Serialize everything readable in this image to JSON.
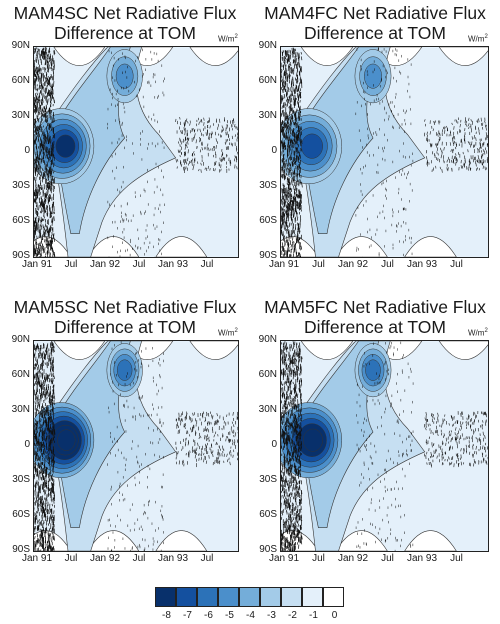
{
  "colors": {
    "levels": [
      "#08306b",
      "#14509f",
      "#2c72b8",
      "#4b8fcb",
      "#74add9",
      "#a3cbe8",
      "#c6dff2",
      "#e4f0fa",
      "#ffffff"
    ],
    "noise": "#111111",
    "contour": "#333333"
  },
  "panels": [
    {
      "title_line1": "MAM4SC Net Radiative Flux",
      "title_line2": "Difference at TOM",
      "unit": "W/m",
      "unit_sup": "2"
    },
    {
      "title_line1": "MAM4FC Net Radiative Flux",
      "title_line2": "Difference at TOM",
      "unit": "W/m",
      "unit_sup": "2"
    },
    {
      "title_line1": "MAM5SC Net Radiative Flux",
      "title_line2": "Difference at TOM",
      "unit": "W/m",
      "unit_sup": "2"
    },
    {
      "title_line1": "MAM5FC Net Radiative Flux",
      "title_line2": "Difference at TOM",
      "unit": "W/m",
      "unit_sup": "2"
    }
  ],
  "chart_data": [
    {
      "type": "heatmap",
      "title": "MAM4SC Net Radiative Flux Difference at TOM",
      "y_ticks": [
        "90N",
        "60N",
        "30N",
        "0",
        "30S",
        "60S",
        "90S"
      ],
      "x_ticks": [
        "Jan 91",
        "Jul",
        "Jan 92",
        "Jul",
        "Jan 93",
        "Jul"
      ],
      "ylim": [
        -90,
        90
      ],
      "grid": false,
      "plume": {
        "peak_lat": 5,
        "peak_value": -6,
        "peak_month": 3
      }
    },
    {
      "type": "heatmap",
      "title": "MAM4FC Net Radiative Flux Difference at TOM",
      "y_ticks": [
        "90N",
        "60N",
        "30N",
        "0",
        "30S",
        "60S",
        "90S"
      ],
      "x_ticks": [
        "Jan 91",
        "Jul",
        "Jan 92",
        "Jul",
        "Jan 93",
        "Jul"
      ],
      "ylim": [
        -90,
        90
      ],
      "grid": false,
      "plume": {
        "peak_lat": 5,
        "peak_value": -5,
        "peak_month": 3
      }
    },
    {
      "type": "heatmap",
      "title": "MAM5SC Net Radiative Flux Difference at TOM",
      "y_ticks": [
        "90N",
        "60N",
        "30N",
        "0",
        "30S",
        "60S",
        "90S"
      ],
      "x_ticks": [
        "Jan 91",
        "Jul",
        "Jan 92",
        "Jul",
        "Jan 93",
        "Jul"
      ],
      "ylim": [
        -90,
        90
      ],
      "grid": false,
      "plume": {
        "peak_lat": 5,
        "peak_value": -8,
        "peak_month": 3
      }
    },
    {
      "type": "heatmap",
      "title": "MAM5FC Net Radiative Flux Difference at TOM",
      "y_ticks": [
        "90N",
        "60N",
        "30N",
        "0",
        "30S",
        "60S",
        "90S"
      ],
      "x_ticks": [
        "Jan 91",
        "Jul",
        "Jan 92",
        "Jul",
        "Jan 93",
        "Jul"
      ],
      "ylim": [
        -90,
        90
      ],
      "grid": false,
      "plume": {
        "peak_lat": 5,
        "peak_value": -7,
        "peak_month": 3
      }
    }
  ],
  "colorbar": {
    "labels": [
      "-8",
      "-7",
      "-6",
      "-5",
      "-4",
      "-3",
      "-2",
      "-1",
      "0"
    ]
  }
}
